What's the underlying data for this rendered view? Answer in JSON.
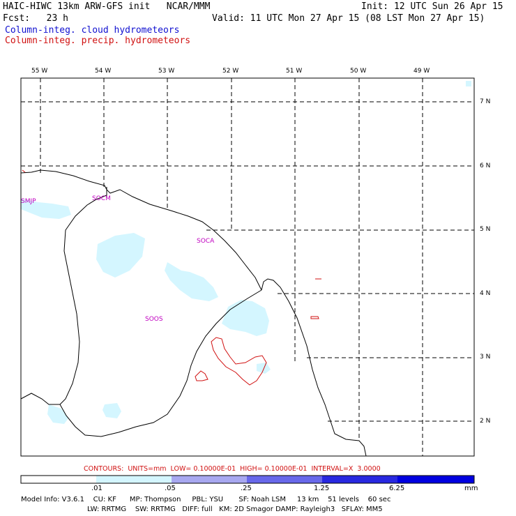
{
  "header": {
    "line1_left": "HAIC-HIWC 13km ARW-GFS init   NCAR/MMM",
    "line1_right": "Init: 12 UTC Sun 26 Apr 15",
    "line2_left": "Fcst:   23 h",
    "line2_right": "Valid: 11 UTC Mon 27 Apr 15 (08 LST Mon 27 Apr 15)",
    "legend_cloud": "Column-integ. cloud hydrometeors",
    "legend_precip": "Column-integ. precip. hydrometeors"
  },
  "colors": {
    "cloud_text": "#1010d0",
    "precip_text": "#d01010",
    "cloud_fill": "#d4f6ff",
    "station": "#c000c0",
    "colorbar": [
      "#ffffff",
      "#d4f6ff",
      "#a8a8f0",
      "#6868ea",
      "#2828e0",
      "#0000e0"
    ]
  },
  "longitude_ticks": [
    "55 W",
    "54 W",
    "53 W",
    "52 W",
    "51 W",
    "50 W",
    "49 W"
  ],
  "latitude_ticks": [
    "7 N",
    "6 N",
    "5 N",
    "4 N",
    "3 N",
    "2 N"
  ],
  "stations": [
    {
      "name": "SMJP"
    },
    {
      "name": "SOCM"
    },
    {
      "name": "SOCA"
    },
    {
      "name": "SOOS"
    }
  ],
  "contours_line": "CONTOURS:  UNITS=mm  LOW= 0.10000E-01  HIGH= 0.10000E-01  INTERVAL=X  3.0000",
  "colorbar": {
    "labels": [
      ".01",
      ".05",
      ".25",
      "1.25",
      "6.25"
    ],
    "unit": "mm"
  },
  "footer": {
    "line1": "Model Info: V3.6.1    CU: KF      MP: Thompson     PBL: YSU       SF: Noah LSM     13 km    51 levels    60 sec",
    "line2": "LW: RRTMG    SW: RRTMG   DIFF: full   KM: 2D Smagor DAMP: Rayleigh3   SFLAY: MM5"
  }
}
